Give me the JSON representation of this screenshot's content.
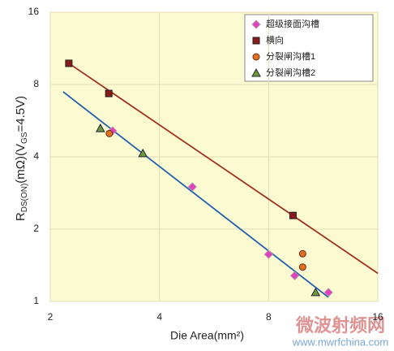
{
  "chart_data": {
    "type": "scatter",
    "y_label_parts": [
      "R",
      "DS(ON)",
      "(mΩ)(V",
      "GS",
      "=4.5V)"
    ],
    "x_label": "Die Area(mm²)",
    "xlim": [
      2,
      16
    ],
    "xticks": [
      2,
      4,
      8,
      16
    ],
    "xscale": "log",
    "ylim": [
      1,
      16
    ],
    "yticks": [
      1,
      2,
      4,
      8,
      16
    ],
    "yscale": "log",
    "grid": true,
    "legend": "upper right",
    "series": [
      {
        "name": "超级接面沟槽",
        "color": "#e040c0",
        "marker": "diamond",
        "x": [
          2.97,
          4.93,
          8.0,
          9.44,
          11.7
        ],
        "values": [
          5.13,
          3.0,
          1.57,
          1.28,
          1.09
        ]
      },
      {
        "name": "横向",
        "color": "#8b1a1a",
        "marker": "square",
        "x": [
          2.25,
          2.9,
          9.34
        ],
        "values": [
          9.8,
          7.34,
          2.28
        ]
      },
      {
        "name": "分裂闸沟槽1",
        "color": "#e07020",
        "marker": "circle",
        "x": [
          2.91,
          9.93,
          9.93
        ],
        "values": [
          5.0,
          1.58,
          1.39
        ]
      },
      {
        "name": "分裂闸沟槽2",
        "color": "#6a9a3a",
        "marker": "triangle",
        "x": [
          2.75,
          3.6,
          10.78
        ],
        "values": [
          5.25,
          4.13,
          1.09
        ]
      }
    ],
    "trendlines": [
      {
        "color": "#a03020",
        "x": [
          2.25,
          16
        ],
        "values": [
          9.8,
          1.31
        ]
      },
      {
        "color": "#2060b0",
        "x": [
          2.17,
          11.7
        ],
        "values": [
          7.46,
          1.04
        ]
      }
    ],
    "watermark": "微波射频网",
    "watermark_url": "www.mwrfchina.com"
  }
}
